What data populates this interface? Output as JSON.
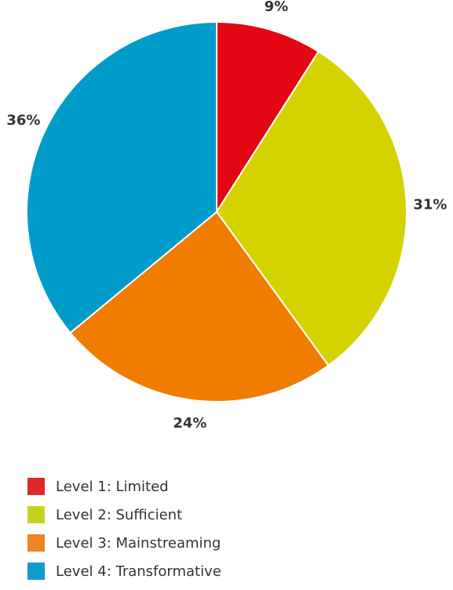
{
  "chart_data": {
    "type": "pie",
    "title": "",
    "slices": [
      {
        "name": "Level 1: Limited",
        "value": 9,
        "label": "9%",
        "color": "#e30613"
      },
      {
        "name": "Level 2: Sufficient",
        "value": 31,
        "label": "31%",
        "color": "#d4d300"
      },
      {
        "name": "Level 3: Mainstreaming",
        "value": 24,
        "label": "24%",
        "color": "#f07c00"
      },
      {
        "name": "Level 4: Transformative",
        "value": 36,
        "label": "36%",
        "color": "#009cc9"
      }
    ],
    "legend_position": "bottom-left",
    "start": "top",
    "direction": "clockwise"
  },
  "legend": {
    "items": [
      {
        "label": "Level 1: Limited",
        "swatch_color": "#dc2a2a"
      },
      {
        "label": "Level 2: Sufficient",
        "swatch_color": "#c8d21e"
      },
      {
        "label": "Level 3: Mainstreaming",
        "swatch_color": "#f08423"
      },
      {
        "label": "Level 4: Transformative",
        "swatch_color": "#0f9ccd"
      }
    ]
  }
}
